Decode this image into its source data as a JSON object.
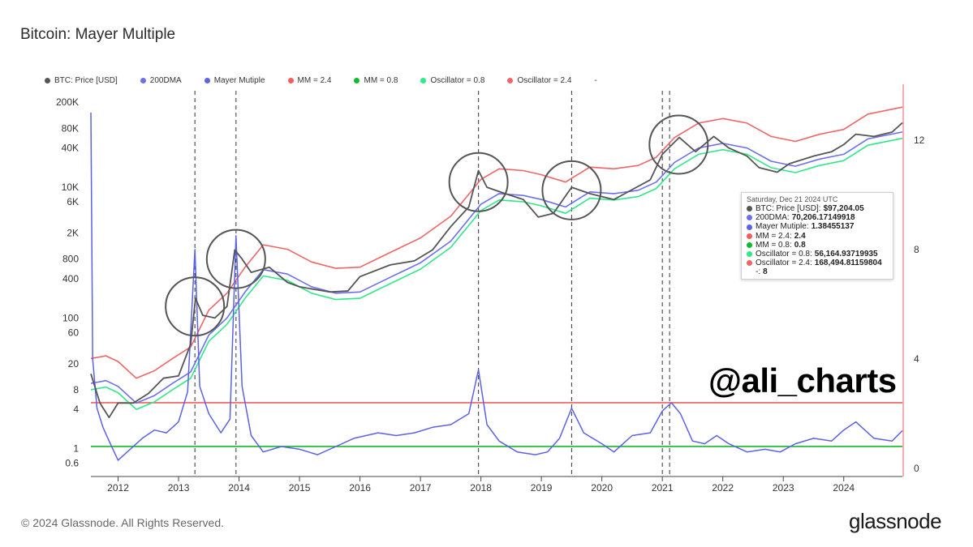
{
  "header": {
    "title": "Bitcoin: Mayer Multiple"
  },
  "legend": [
    {
      "label": "BTC: Price [USD]",
      "color": "#555555"
    },
    {
      "label": "200DMA",
      "color": "#6b6ff0"
    },
    {
      "label": "Mayer Mutiple",
      "color": "#5a62e8"
    },
    {
      "label": "MM = 2.4",
      "color": "#f25e5e"
    },
    {
      "label": "MM = 0.8",
      "color": "#13b82b"
    },
    {
      "label": "Oscillator = 0.8",
      "color": "#2ee88a"
    },
    {
      "label": "Oscillator = 2.4",
      "color": "#f06565"
    },
    {
      "label": "-",
      "color": ""
    }
  ],
  "tooltip": {
    "date": "Saturday, Dec 21 2024 UTC",
    "rows": [
      {
        "label": "BTC: Price [USD]:",
        "value": "$97,204.05",
        "color": "#555555"
      },
      {
        "label": "200DMA:",
        "value": "70,206.17149918",
        "color": "#6b6ff0"
      },
      {
        "label": "Mayer Mutiple:",
        "value": "1.38455137",
        "color": "#5a62e8"
      },
      {
        "label": "MM = 2.4:",
        "value": "2.4",
        "color": "#f25e5e"
      },
      {
        "label": "MM = 0.8:",
        "value": "0.8",
        "color": "#13b82b"
      },
      {
        "label": "Oscillator = 0.8:",
        "value": "56,164.93719935",
        "color": "#2ee88a"
      },
      {
        "label": "Oscillator = 2.4:",
        "value": "168,494.81159804",
        "color": "#f06565"
      },
      {
        "label": "-:",
        "value": "8",
        "color": ""
      }
    ]
  },
  "watermark": "@ali_charts",
  "footer": {
    "copyright": "© 2024 Glassnode. All Rights Reserved.",
    "brand": "glassnode"
  },
  "chart_data": {
    "type": "line",
    "title": "Bitcoin: Mayer Multiple",
    "x_ticks": [
      "2012",
      "2013",
      "2014",
      "2015",
      "2016",
      "2017",
      "2018",
      "2019",
      "2020",
      "2021",
      "2022",
      "2023",
      "2024"
    ],
    "x_range": [
      2011.55,
      2024.97
    ],
    "y_left": {
      "scale": "log",
      "range": [
        0.5,
        300000
      ],
      "ticks": [
        "200K",
        "80K",
        "40K",
        "10K",
        "6K",
        "2K",
        "800",
        "400",
        "100",
        "60",
        "20",
        "8",
        "4",
        "1",
        "0.6"
      ],
      "tick_values": [
        200000,
        80000,
        40000,
        10000,
        6000,
        2000,
        800,
        400,
        100,
        60,
        20,
        8,
        4,
        1,
        0.6
      ]
    },
    "y_right": {
      "scale": "linear",
      "range": [
        0,
        13.8
      ],
      "ticks": [
        "12",
        "8",
        "4",
        "0"
      ],
      "tick_values": [
        12,
        8,
        4,
        0
      ]
    },
    "horizontal_lines": [
      {
        "series": "MM = 2.4",
        "value": 2.4,
        "color": "#f25e5e"
      },
      {
        "series": "MM = 0.8",
        "value": 0.8,
        "color": "#13b82b"
      }
    ],
    "event_lines": [
      2013.27,
      2013.95,
      2017.96,
      2019.5,
      2021.0,
      2021.12
    ],
    "circles": [
      {
        "x": 2013.27,
        "price": 150
      },
      {
        "x": 2013.95,
        "price": 800
      },
      {
        "x": 2017.96,
        "price": 12000
      },
      {
        "x": 2019.5,
        "price": 9000
      },
      {
        "x": 2021.27,
        "price": 45000
      }
    ],
    "series": [
      {
        "name": "BTC: Price [USD]",
        "axis": "left",
        "color": "#555555",
        "x": [
          2011.55,
          2011.7,
          2011.85,
          2012.0,
          2012.25,
          2012.5,
          2012.75,
          2013.0,
          2013.2,
          2013.28,
          2013.4,
          2013.6,
          2013.8,
          2013.93,
          2014.05,
          2014.2,
          2014.5,
          2014.8,
          2015.0,
          2015.5,
          2015.8,
          2016.0,
          2016.5,
          2016.9,
          2017.2,
          2017.5,
          2017.8,
          2017.96,
          2018.1,
          2018.4,
          2018.7,
          2018.95,
          2019.2,
          2019.5,
          2019.8,
          2020.0,
          2020.2,
          2020.5,
          2020.8,
          2021.0,
          2021.28,
          2021.55,
          2021.85,
          2022.1,
          2022.4,
          2022.6,
          2022.9,
          2023.1,
          2023.5,
          2023.8,
          2024.0,
          2024.2,
          2024.5,
          2024.8,
          2024.97
        ],
        "values": [
          14,
          5,
          3,
          5,
          5,
          7,
          12,
          13,
          40,
          200,
          110,
          100,
          150,
          1100,
          800,
          500,
          600,
          350,
          300,
          250,
          260,
          430,
          650,
          750,
          1100,
          2500,
          5000,
          18000,
          10000,
          8000,
          6500,
          3500,
          4000,
          10000,
          8000,
          7200,
          6500,
          9200,
          13000,
          32000,
          58000,
          35000,
          60000,
          40000,
          30000,
          20000,
          17000,
          23000,
          30000,
          35000,
          45000,
          65000,
          60000,
          70000,
          97000
        ]
      },
      {
        "name": "200DMA",
        "axis": "left",
        "color": "#6b6ff0",
        "x": [
          2011.55,
          2011.8,
          2012.0,
          2012.3,
          2012.6,
          2012.9,
          2013.2,
          2013.5,
          2013.8,
          2014.1,
          2014.4,
          2014.8,
          2015.2,
          2015.6,
          2016.0,
          2016.5,
          2017.0,
          2017.5,
          2018.0,
          2018.3,
          2018.7,
          2019.0,
          2019.4,
          2019.8,
          2020.2,
          2020.6,
          2020.9,
          2021.2,
          2021.6,
          2022.0,
          2022.4,
          2022.8,
          2023.2,
          2023.6,
          2024.0,
          2024.4,
          2024.97
        ],
        "values": [
          10,
          11,
          9,
          5,
          6.5,
          10,
          15,
          55,
          100,
          250,
          550,
          470,
          300,
          240,
          250,
          420,
          700,
          1500,
          5500,
          8000,
          7500,
          6500,
          5000,
          8500,
          8000,
          9000,
          12000,
          24000,
          40000,
          47000,
          40000,
          25000,
          21000,
          27000,
          32000,
          55000,
          70206
        ]
      },
      {
        "name": "Oscillator = 2.4",
        "axis": "left",
        "color": "#f06565",
        "x": [
          2011.55,
          2011.8,
          2012.0,
          2012.3,
          2012.6,
          2012.9,
          2013.2,
          2013.5,
          2013.8,
          2014.1,
          2014.4,
          2014.8,
          2015.2,
          2015.6,
          2016.0,
          2016.5,
          2017.0,
          2017.5,
          2018.0,
          2018.3,
          2018.7,
          2019.0,
          2019.4,
          2019.8,
          2020.2,
          2020.6,
          2020.9,
          2021.2,
          2021.6,
          2022.0,
          2022.4,
          2022.8,
          2023.2,
          2023.6,
          2024.0,
          2024.4,
          2024.97
        ],
        "values": [
          24,
          26.4,
          21.6,
          12,
          15.6,
          24,
          36,
          132,
          240,
          600,
          1320,
          1128,
          720,
          576,
          600,
          1008,
          1680,
          3600,
          13200,
          19200,
          18000,
          15600,
          12000,
          20400,
          19200,
          21600,
          28800,
          57600,
          96000,
          112800,
          96000,
          60000,
          50400,
          64800,
          76800,
          132000,
          168494
        ]
      },
      {
        "name": "Oscillator = 0.8",
        "axis": "left",
        "color": "#2ee88a",
        "x": [
          2011.55,
          2011.8,
          2012.0,
          2012.3,
          2012.6,
          2012.9,
          2013.2,
          2013.5,
          2013.8,
          2014.1,
          2014.4,
          2014.8,
          2015.2,
          2015.6,
          2016.0,
          2016.5,
          2017.0,
          2017.5,
          2018.0,
          2018.3,
          2018.7,
          2019.0,
          2019.4,
          2019.8,
          2020.2,
          2020.6,
          2020.9,
          2021.2,
          2021.6,
          2022.0,
          2022.4,
          2022.8,
          2023.2,
          2023.6,
          2024.0,
          2024.4,
          2024.97
        ],
        "values": [
          8,
          8.8,
          7.2,
          4,
          5.2,
          8,
          12,
          44,
          80,
          200,
          440,
          376,
          240,
          192,
          200,
          336,
          560,
          1200,
          4400,
          6400,
          6000,
          5200,
          4000,
          6800,
          6400,
          7200,
          9600,
          19200,
          32000,
          37600,
          32000,
          20000,
          16800,
          21600,
          25600,
          44000,
          56164
        ]
      },
      {
        "name": "Mayer Mutiple",
        "axis": "right",
        "color": "#5a62e8",
        "x": [
          2011.55,
          2011.58,
          2011.65,
          2011.75,
          2011.85,
          2012.0,
          2012.2,
          2012.4,
          2012.6,
          2012.8,
          2013.0,
          2013.15,
          2013.27,
          2013.35,
          2013.5,
          2013.7,
          2013.85,
          2013.95,
          2014.05,
          2014.2,
          2014.4,
          2014.7,
          2015.0,
          2015.3,
          2015.6,
          2015.9,
          2016.3,
          2016.6,
          2016.9,
          2017.2,
          2017.5,
          2017.8,
          2017.96,
          2018.1,
          2018.3,
          2018.6,
          2018.9,
          2019.1,
          2019.3,
          2019.5,
          2019.7,
          2020.0,
          2020.2,
          2020.5,
          2020.8,
          2021.0,
          2021.15,
          2021.3,
          2021.5,
          2021.7,
          2021.9,
          2022.1,
          2022.4,
          2022.7,
          2022.95,
          2023.2,
          2023.5,
          2023.8,
          2024.0,
          2024.2,
          2024.5,
          2024.8,
          2024.97
        ],
        "values": [
          13,
          4,
          2.2,
          1.5,
          1,
          0.3,
          0.7,
          1.1,
          1.4,
          1.3,
          1.7,
          2.8,
          8.0,
          3.0,
          2.0,
          1.3,
          1.8,
          8.5,
          3.0,
          1.2,
          0.6,
          0.8,
          0.7,
          0.5,
          0.8,
          1.1,
          1.3,
          1.2,
          1.3,
          1.5,
          1.6,
          2.0,
          3.6,
          1.6,
          1.0,
          0.6,
          0.5,
          0.6,
          1.1,
          2.2,
          1.3,
          0.9,
          0.6,
          1.2,
          1.3,
          2.1,
          2.4,
          2.0,
          1.0,
          0.9,
          1.2,
          0.9,
          0.6,
          0.7,
          0.6,
          0.9,
          1.1,
          1.0,
          1.4,
          1.7,
          1.1,
          1.0,
          1.38
        ]
      }
    ]
  }
}
